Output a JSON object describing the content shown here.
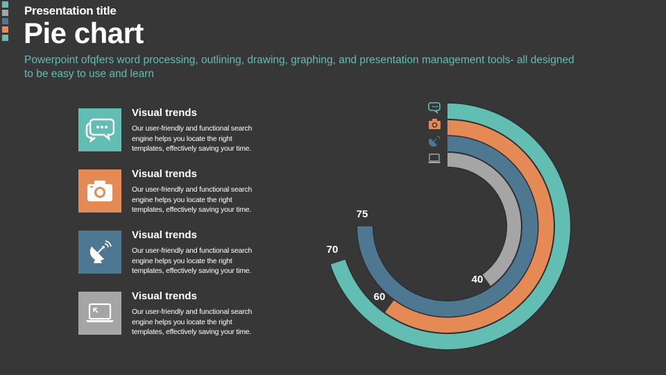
{
  "header": {
    "presentation_title": "Presentation title",
    "slide_title": "Pie chart",
    "description": "Powerpoint ofqfers word processing, outlining, drawing, graphing, and presentation management tools- all designed to be easy to use and learn"
  },
  "colors": {
    "background": "#373737",
    "teal": "#62bdb3",
    "orange": "#e58a55",
    "blue": "#4e7892",
    "gray": "#a5a5a5",
    "white": "#ffffff"
  },
  "swatch_colors": [
    "#62bdb3",
    "#a5a5a5",
    "#4e7892",
    "#e58a55",
    "#62bdb3"
  ],
  "features": [
    {
      "title": "Visual trends",
      "text": "Our user-friendly and functional search engine helps you locate the right templates, effectively saving your time.",
      "icon": "chat-bubbles-icon",
      "color": "#62bdb3"
    },
    {
      "title": "Visual trends",
      "text": "Our user-friendly and functional search engine helps you locate the right templates, effectively saving your time.",
      "icon": "camera-icon",
      "color": "#e58a55"
    },
    {
      "title": "Visual trends",
      "text": "Our user-friendly and functional search engine helps you locate the right templates, effectively saving your time.",
      "icon": "satellite-dish-icon",
      "color": "#4e7892"
    },
    {
      "title": "Visual trends",
      "text": "Our user-friendly and functional search engine helps you locate the right templates, effectively saving your time.",
      "icon": "laptop-icon",
      "color": "#a5a5a5"
    }
  ],
  "chart_data": {
    "type": "radial-bar",
    "title": "Pie chart",
    "max": 100,
    "series": [
      {
        "name": "Chat",
        "value": 70,
        "label": "70",
        "color": "#62bdb3",
        "icon": "chat-bubbles-icon"
      },
      {
        "name": "Camera",
        "value": 60,
        "label": "60",
        "color": "#e58a55",
        "icon": "camera-icon"
      },
      {
        "name": "Satellite",
        "value": 75,
        "label": "75",
        "color": "#4e7892",
        "icon": "satellite-dish-icon"
      },
      {
        "name": "Laptop",
        "value": 40,
        "label": "40",
        "color": "#a5a5a5",
        "icon": "laptop-icon"
      }
    ]
  }
}
